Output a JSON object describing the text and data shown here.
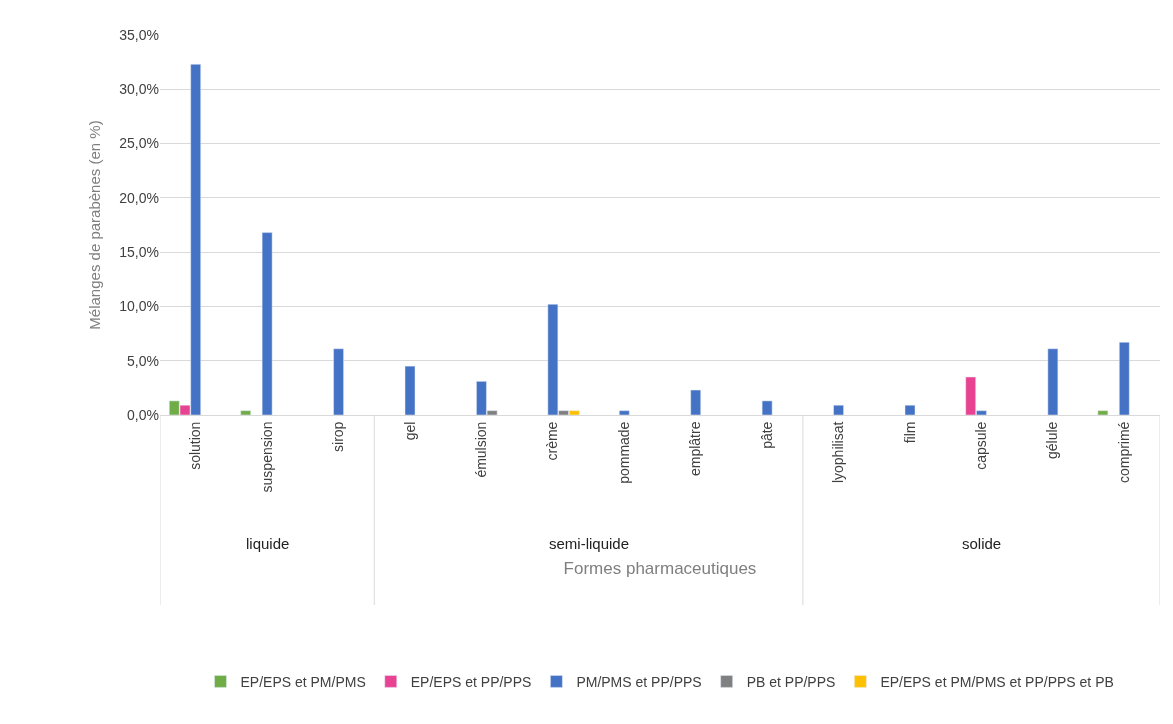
{
  "chart_data": {
    "type": "bar",
    "xlabel": "Formes pharmaceutiques",
    "ylabel": "Mélanges de parabènes (en %)",
    "categories": [
      "solution",
      "suspension",
      "sirop",
      "gel",
      "émulsion",
      "crème",
      "pommade",
      "emplâtre",
      "pâte",
      "lyophilisat",
      "film",
      "capsule",
      "gélule",
      "comprimé"
    ],
    "series": [
      {
        "name": "EP/EPS et PM/PMS",
        "color": "#70ad47",
        "values": [
          1.3,
          0.4,
          null,
          null,
          null,
          null,
          null,
          null,
          null,
          null,
          null,
          null,
          null,
          0.4
        ]
      },
      {
        "name": "EP/EPS et PP/PPS",
        "color": "#e84393",
        "values": [
          0.9,
          null,
          null,
          null,
          null,
          null,
          null,
          null,
          null,
          null,
          null,
          3.5,
          null,
          null
        ]
      },
      {
        "name": "PM/PMS et PP/PPS",
        "color": "#4472c4",
        "values": [
          32.3,
          16.8,
          6.1,
          4.5,
          3.1,
          10.2,
          0.4,
          2.3,
          1.3,
          0.9,
          0.9,
          0.4,
          6.1,
          6.7
        ]
      },
      {
        "name": "PB et PP/PPS",
        "color": "#808080",
        "values": [
          null,
          null,
          null,
          null,
          0.4,
          0.4,
          null,
          null,
          null,
          null,
          null,
          null,
          null,
          null
        ]
      },
      {
        "name": "EP/EPS et PM/PMS et PP/PPS et PB",
        "color": "#ffc000",
        "values": [
          null,
          null,
          null,
          null,
          null,
          0.4,
          null,
          null,
          null,
          null,
          null,
          null,
          null,
          null
        ]
      }
    ],
    "annotations": [
      "liquide",
      "semi-liquide",
      "solide"
    ],
    "ylim": [
      0,
      35
    ],
    "yticks": [
      {
        "value": 0,
        "label": "0,0%"
      },
      {
        "value": 5,
        "label": "5,0%"
      },
      {
        "value": 10,
        "label": "10,0%"
      },
      {
        "value": 15,
        "label": "15,0%"
      },
      {
        "value": 20,
        "label": "20,0%"
      },
      {
        "value": 25,
        "label": "25,0%"
      },
      {
        "value": 30,
        "label": "30,0%"
      },
      {
        "value": 35,
        "label": "35,0%"
      }
    ],
    "grid": "y",
    "legend": "bottom"
  }
}
